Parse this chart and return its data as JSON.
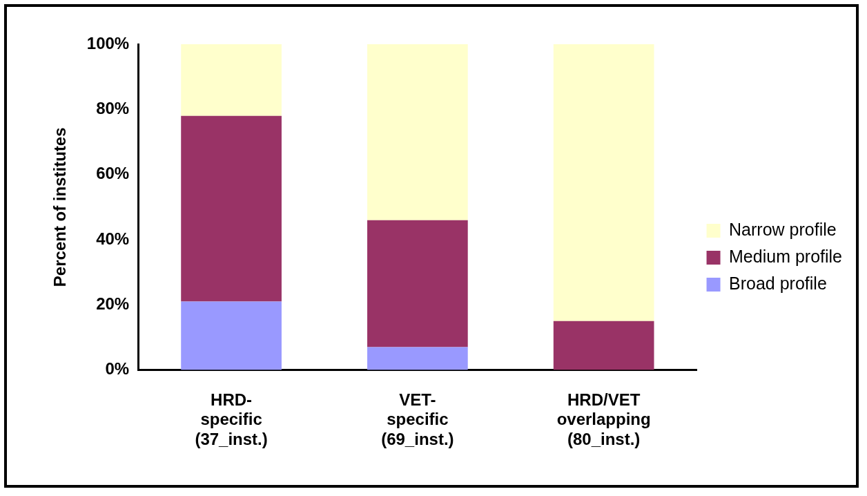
{
  "chart_data": {
    "type": "bar",
    "stacked": true,
    "ylabel": "Percent of institutes",
    "categories": [
      "HRD-\nspecific\n(37_inst.)",
      "VET-\nspecific\n(69_inst.)",
      "HRD/VET\noverlapping\n(80_inst.)"
    ],
    "series": [
      {
        "name": "Broad profile",
        "color": "#9999ff",
        "values": [
          21,
          7,
          0
        ]
      },
      {
        "name": "Medium profile",
        "color": "#993366",
        "values": [
          57,
          39,
          15
        ]
      },
      {
        "name": "Narrow profile",
        "color": "#ffffcc",
        "values": [
          22,
          54,
          85
        ]
      }
    ],
    "ylim": [
      0,
      100
    ],
    "yticks": [
      {
        "value": 0,
        "label": "0%"
      },
      {
        "value": 20,
        "label": "20%"
      },
      {
        "value": 40,
        "label": "40%"
      },
      {
        "value": 60,
        "label": "60%"
      },
      {
        "value": 80,
        "label": "80%"
      },
      {
        "value": 100,
        "label": "100%"
      }
    ],
    "grid": false,
    "legend": "right"
  }
}
